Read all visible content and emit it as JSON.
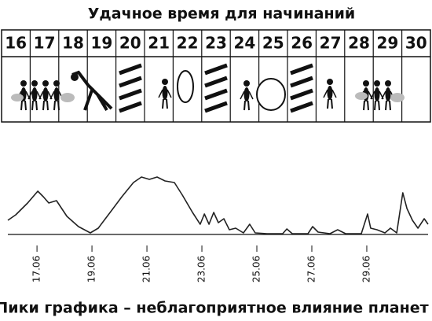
{
  "header": {
    "title": "Удачное время для начинаний"
  },
  "calendar": {
    "days": [
      "16",
      "17",
      "18",
      "19",
      "20",
      "21",
      "22",
      "23",
      "24",
      "25",
      "26",
      "27",
      "28",
      "29",
      "30"
    ]
  },
  "chart_data": {
    "type": "line",
    "caption": "Пики графика – неблагоприятное влияние планет",
    "x": [
      15.94,
      16.23,
      16.66,
      17.03,
      17.23,
      17.43,
      17.71,
      18.09,
      18.51,
      18.94,
      19.23,
      19.66,
      20.09,
      20.51,
      20.8,
      21.09,
      21.37,
      21.66,
      22,
      22.29,
      22.66,
      22.94,
      23.09,
      23.26,
      23.43,
      23.6,
      23.8,
      24,
      24.23,
      24.51,
      24.74,
      24.94,
      25.37,
      25.94,
      26.09,
      26.29,
      26.86,
      27.03,
      27.23,
      27.66,
      27.94,
      28.23,
      28.8,
      29.03,
      29.14,
      29.37,
      29.66,
      29.86,
      30.09,
      30.31,
      30.46,
      30.66,
      30.86,
      31.09,
      31.23
    ],
    "values": [
      18,
      25,
      40,
      55,
      48,
      40,
      43,
      23,
      10,
      2,
      8,
      28,
      48,
      66,
      73,
      70,
      73,
      68,
      66,
      50,
      28,
      13,
      26,
      13,
      28,
      15,
      20,
      6,
      8,
      2,
      13,
      2,
      1,
      1,
      7,
      1,
      1,
      10,
      3,
      1,
      6,
      1,
      1,
      26,
      8,
      6,
      2,
      8,
      2,
      53,
      33,
      18,
      8,
      20,
      13
    ],
    "color": "#222",
    "xlim": [
      15.94,
      31.23
    ],
    "ylim": [
      0,
      80
    ],
    "xticks": [
      {
        "value": 17,
        "label": "17.06"
      },
      {
        "value": 19,
        "label": "19.06"
      },
      {
        "value": 21,
        "label": "21.06"
      },
      {
        "value": 23,
        "label": "23.06"
      },
      {
        "value": 25,
        "label": "25.06"
      },
      {
        "value": 27,
        "label": "27.06"
      },
      {
        "value": 29,
        "label": "29.06"
      }
    ]
  }
}
